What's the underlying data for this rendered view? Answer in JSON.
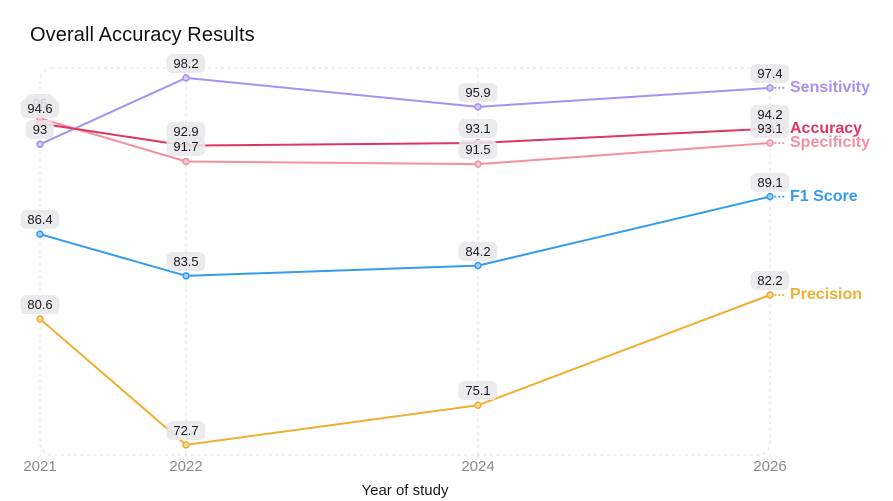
{
  "title": "Overall Accuracy Results",
  "x_axis_label": "Year of study",
  "chart_data": {
    "type": "line",
    "title": "Overall Accuracy Results",
    "xlabel": "Year of study",
    "ylabel": "",
    "x": [
      2021,
      2022,
      2024,
      2026
    ],
    "x_tick_labels": [
      "2021",
      "2022",
      "2024",
      "2026"
    ],
    "yscale": "log",
    "ylim": [
      72.1,
      99.0
    ],
    "grid": "vertical-dashed-border",
    "legend_position": "inline-right",
    "point_labels_visible": true,
    "series": [
      {
        "name": "Sensitivity",
        "color": "#a890f2",
        "values": [
          93,
          98.2,
          95.9,
          97.4
        ]
      },
      {
        "name": "Specificity",
        "color": "#f48fa4",
        "values": [
          95,
          91.7,
          91.5,
          93.1
        ]
      },
      {
        "name": "Accuracy",
        "color": "#df3564",
        "values": [
          94.6,
          92.9,
          93.1,
          94.2
        ]
      },
      {
        "name": "F1 Score",
        "color": "#349bf1",
        "values": [
          86.4,
          83.5,
          84.2,
          89.1
        ]
      },
      {
        "name": "Precision",
        "color": "#f0ae33",
        "values": [
          80.6,
          72.7,
          75.1,
          82.2
        ]
      }
    ]
  }
}
